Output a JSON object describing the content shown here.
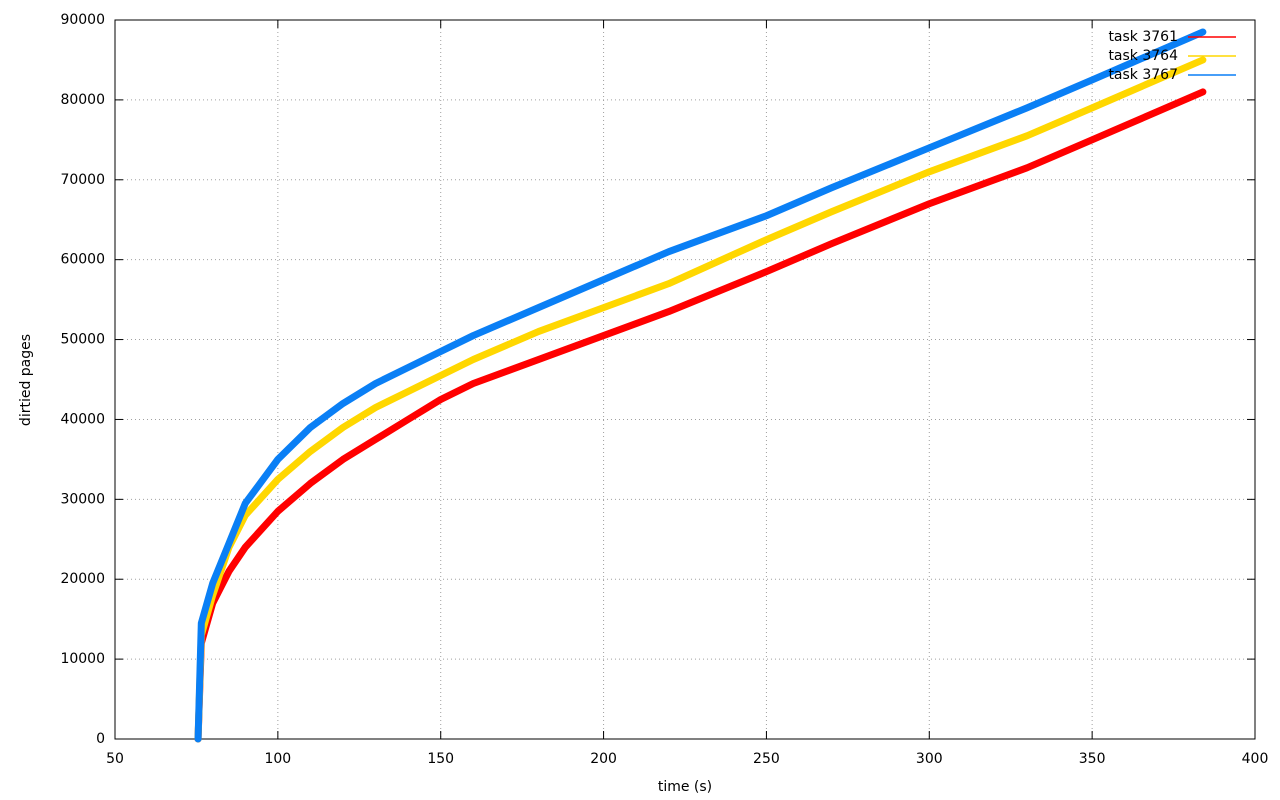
{
  "chart_data": {
    "type": "line",
    "x_label": "time (s)",
    "y_label": "dirtied pages",
    "x": [
      75.5,
      76.5,
      80,
      85,
      90,
      100,
      110,
      120,
      130,
      140,
      150,
      160,
      180,
      200,
      220,
      250,
      270,
      300,
      330,
      350,
      384
    ],
    "series": [
      {
        "name": "task 3761",
        "color": "#ff0000",
        "values": [
          0,
          12000,
          17000,
          21000,
          24000,
          28500,
          32000,
          35000,
          37500,
          40000,
          42500,
          44500,
          47500,
          50500,
          53500,
          58500,
          62000,
          67000,
          71500,
          75000,
          81000
        ]
      },
      {
        "name": "task 3764",
        "color": "#ffd700",
        "values": [
          0,
          13000,
          18000,
          24000,
          28000,
          32500,
          36000,
          39000,
          41500,
          43500,
          45500,
          47500,
          51000,
          54000,
          57000,
          62500,
          66000,
          71000,
          75500,
          79000,
          85000
        ]
      },
      {
        "name": "task 3767",
        "color": "#0a7ff5",
        "values": [
          0,
          14500,
          19500,
          24500,
          29500,
          35000,
          39000,
          42000,
          44500,
          46500,
          48500,
          50500,
          54000,
          57500,
          61000,
          65500,
          69000,
          74000,
          79000,
          82500,
          88500
        ]
      }
    ],
    "xlim": [
      50,
      400
    ],
    "xticks": [
      50,
      100,
      150,
      200,
      250,
      300,
      350,
      400
    ],
    "ylim": [
      0,
      90000
    ],
    "yticks": [
      0,
      10000,
      20000,
      30000,
      40000,
      50000,
      60000,
      70000,
      80000,
      90000
    ],
    "grid": true,
    "legend": "top-right"
  }
}
